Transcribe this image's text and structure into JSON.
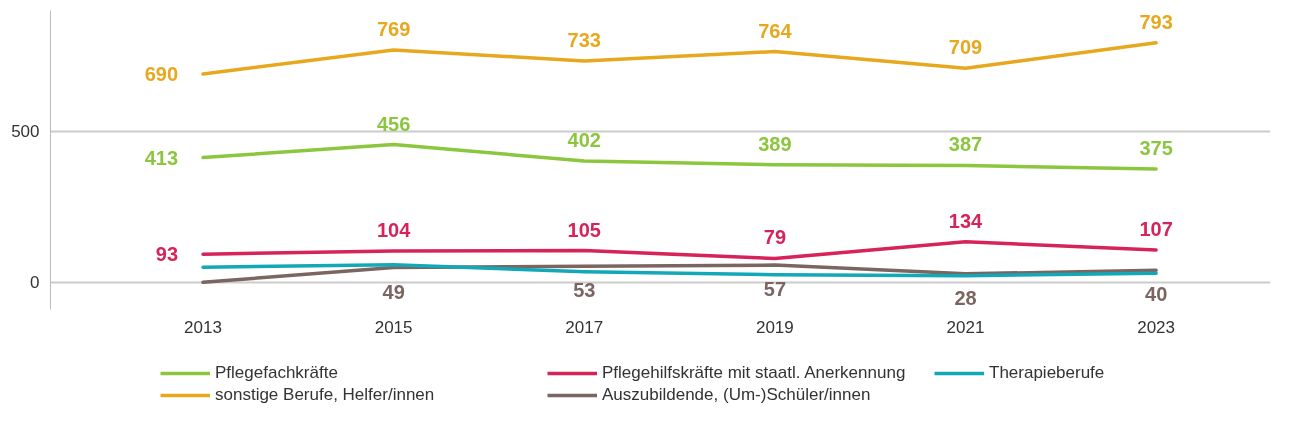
{
  "chart_data": {
    "type": "line",
    "categories": [
      "2013",
      "2015",
      "2017",
      "2019",
      "2021",
      "2023"
    ],
    "ylim": [
      -90,
      900
    ],
    "yticks": [
      0,
      500
    ],
    "grid": "y",
    "legend": "bottom",
    "series": [
      {
        "name": "Pflegefachkräfte",
        "color": "#8cc63f",
        "values": [
          413,
          456,
          402,
          389,
          387,
          375
        ],
        "value_labels": [
          "413",
          "456",
          "402",
          "389",
          "387",
          "375"
        ]
      },
      {
        "name": "sonstige Berufe, Helfer/innen",
        "color": "#e8a81e",
        "values": [
          690,
          769,
          733,
          764,
          709,
          793
        ],
        "value_labels": [
          "690",
          "769",
          "733",
          "764",
          "709",
          "793"
        ]
      },
      {
        "name": "Pflegehilfskräfte mit staatl. Anerkennung",
        "color": "#d6245a",
        "values": [
          93,
          104,
          105,
          79,
          134,
          107
        ],
        "value_labels": [
          "93",
          "104",
          "105",
          "79",
          "134",
          "107"
        ]
      },
      {
        "name": "Auszubildende, (Um-)Schüler/innen",
        "color": "#7a6560",
        "values": [
          0,
          49,
          53,
          57,
          28,
          40
        ],
        "value_labels": [
          null,
          "49",
          "53",
          "57",
          "28",
          "40"
        ]
      },
      {
        "name": "Therapieberufe",
        "color": "#13a8b8",
        "values": [
          50,
          58,
          35,
          25,
          22,
          30
        ]
      }
    ]
  }
}
